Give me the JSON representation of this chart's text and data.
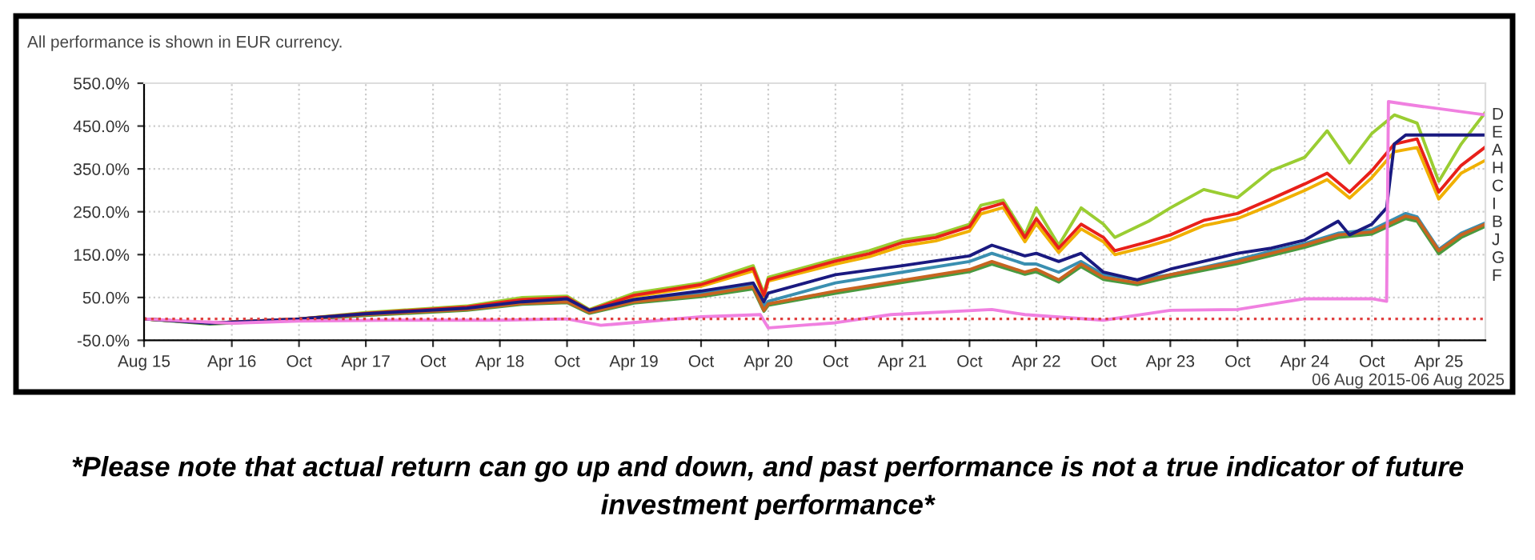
{
  "chart_data": {
    "type": "line",
    "title": "All performance is shown in EUR currency.",
    "annotations": [
      "06 Aug 2015-06 Aug 2025",
      "*Please note that actual return can go up and down, and past performance is not a true indicator of future investment performance*",
      "D",
      "E",
      "A",
      "H",
      "C",
      "I",
      "B",
      "J",
      "G",
      "F"
    ],
    "series": [
      {
        "color": "#9acd32",
        "x": [
          "2015-08-06",
          "2016-02",
          "2016-10",
          "2017-04",
          "2018-01",
          "2018-06",
          "2018-10",
          "2018-12",
          "2019-04",
          "2019-10",
          "2020-02-20",
          "2020-03-20",
          "2020-04",
          "2020-10",
          "2021-01",
          "2021-04",
          "2021-07",
          "2021-10",
          "2021-11",
          "2022-01",
          "2022-03",
          "2022-04",
          "2022-06",
          "2022-08",
          "2022-10",
          "2022-11",
          "2023-02",
          "2023-04",
          "2023-07",
          "2023-10",
          "2024-01",
          "2024-04",
          "2024-06",
          "2024-08",
          "2024-10",
          "2024-12",
          "2025-02",
          "2025-04",
          "2025-06",
          "2025-08-06"
        ],
        "values": [
          0,
          -10,
          0,
          15,
          30,
          50,
          53,
          22,
          60,
          84,
          124,
          60,
          97,
          140,
          159,
          184,
          196,
          221,
          265,
          277,
          196,
          259,
          172,
          259,
          221,
          190,
          228,
          259,
          302,
          283,
          346,
          377,
          439,
          364,
          433,
          476,
          457,
          321,
          408,
          482
        ]
      },
      {
        "color": "#f0b000",
        "x": [
          "2018-12",
          "2019-04",
          "2019-10",
          "2020-02-20",
          "2020-03-20",
          "2020-04",
          "2020-10",
          "2021-01",
          "2021-04",
          "2021-07",
          "2021-10",
          "2021-11",
          "2022-01",
          "2022-03",
          "2022-04",
          "2022-06",
          "2022-08",
          "2022-10",
          "2022-11",
          "2023-02",
          "2023-04",
          "2023-07",
          "2023-10",
          "2024-01",
          "2024-04",
          "2024-06",
          "2024-08",
          "2024-10",
          "2024-12",
          "2025-02",
          "2025-04",
          "2025-06",
          "2025-08-06"
        ],
        "values": [
          18,
          52,
          76,
          112,
          50,
          88,
          128,
          145,
          170,
          182,
          205,
          245,
          260,
          180,
          222,
          155,
          210,
          180,
          150,
          170,
          185,
          218,
          234,
          266,
          300,
          325,
          282,
          330,
          390,
          400,
          280,
          340,
          370
        ]
      },
      {
        "color": "#e8201a",
        "x": [
          "2015-08-06",
          "2016-02",
          "2016-10",
          "2017-04",
          "2018-01",
          "2018-06",
          "2018-10",
          "2018-12",
          "2019-04",
          "2019-10",
          "2020-02-20",
          "2020-03-20",
          "2020-04",
          "2020-10",
          "2021-01",
          "2021-04",
          "2021-07",
          "2021-10",
          "2021-11",
          "2022-01",
          "2022-03",
          "2022-04",
          "2022-06",
          "2022-08",
          "2022-10",
          "2022-11",
          "2023-02",
          "2023-04",
          "2023-07",
          "2023-10",
          "2024-01",
          "2024-04",
          "2024-06",
          "2024-08",
          "2024-10",
          "2024-12",
          "2025-02",
          "2025-04",
          "2025-06",
          "2025-08-06"
        ],
        "values": [
          0,
          -10,
          0,
          13,
          28,
          45,
          50,
          20,
          55,
          80,
          118,
          55,
          92,
          135,
          152,
          178,
          190,
          215,
          255,
          270,
          190,
          234,
          165,
          221,
          190,
          159,
          180,
          196,
          230,
          246,
          280,
          315,
          340,
          296,
          346,
          408,
          420,
          296,
          358,
          401
        ]
      },
      {
        "color": "#3a8fb0",
        "x": [
          "2019-04",
          "2019-10",
          "2020-02-20",
          "2020-03-20",
          "2020-04",
          "2020-10",
          "2021-04",
          "2021-10",
          "2021-12",
          "2022-03",
          "2022-04",
          "2022-06",
          "2022-08",
          "2022-10",
          "2023-01",
          "2023-04",
          "2023-10",
          "2024-01",
          "2024-04",
          "2024-07",
          "2024-10",
          "2025-01",
          "2025-02",
          "2025-04",
          "2025-06",
          "2025-08-06"
        ],
        "values": [
          43,
          60,
          78,
          30,
          41,
          84,
          109,
          134,
          153,
          128,
          128,
          109,
          134,
          103,
          91,
          103,
          138,
          158,
          176,
          200,
          208,
          246,
          238,
          162,
          200,
          224
        ]
      },
      {
        "color": "#4a9a40",
        "x": [
          "2015-08-06",
          "2016-02",
          "2016-10",
          "2017-04",
          "2018-01",
          "2018-06",
          "2018-10",
          "2018-12",
          "2019-04",
          "2019-10",
          "2020-02-20",
          "2020-03-20",
          "2020-04",
          "2020-10",
          "2021-04",
          "2021-10",
          "2021-12",
          "2022-03",
          "2022-04",
          "2022-06",
          "2022-08",
          "2022-10",
          "2023-01",
          "2023-04",
          "2023-10",
          "2024-01",
          "2024-04",
          "2024-07",
          "2024-10",
          "2025-01",
          "2025-02",
          "2025-04",
          "2025-06",
          "2025-08-06"
        ],
        "values": [
          0,
          -12,
          -2,
          8,
          20,
          34,
          38,
          13,
          37,
          52,
          70,
          18,
          32,
          60,
          85,
          110,
          128,
          104,
          110,
          86,
          122,
          92,
          80,
          98,
          129,
          148,
          167,
          190,
          198,
          234,
          228,
          152,
          190,
          216
        ]
      },
      {
        "color": "#c86420",
        "x": [
          "2015-08-06",
          "2016-02",
          "2016-10",
          "2017-04",
          "2018-01",
          "2018-06",
          "2018-10",
          "2018-12",
          "2019-04",
          "2019-10",
          "2020-02-20",
          "2020-03-20",
          "2020-04",
          "2020-10",
          "2021-04",
          "2021-10",
          "2021-12",
          "2022-03",
          "2022-04",
          "2022-06",
          "2022-08",
          "2022-10",
          "2023-01",
          "2023-04",
          "2023-10",
          "2024-01",
          "2024-04",
          "2024-07",
          "2024-10",
          "2025-01",
          "2025-02",
          "2025-04",
          "2025-06",
          "2025-08-06"
        ],
        "values": [
          0,
          -10,
          0,
          10,
          22,
          36,
          40,
          15,
          40,
          55,
          75,
          20,
          35,
          65,
          90,
          115,
          134,
          109,
          116,
          91,
          128,
          97,
          84,
          103,
          134,
          153,
          172,
          196,
          203,
          240,
          234,
          159,
          196,
          221
        ]
      },
      {
        "color": "#1a1a80",
        "x": [
          "2015-08-06",
          "2016-02",
          "2016-10",
          "2017-04",
          "2018-01",
          "2018-06",
          "2018-10",
          "2018-12",
          "2019-04",
          "2019-10",
          "2020-02-20",
          "2020-03-20",
          "2020-04",
          "2020-10",
          "2021-04",
          "2021-10",
          "2021-12",
          "2022-03",
          "2022-04",
          "2022-06",
          "2022-08",
          "2022-10",
          "2023-01",
          "2023-04",
          "2023-10",
          "2024-01",
          "2024-04",
          "2024-07",
          "2024-08",
          "2024-10",
          "2024-11-10",
          "2024-12",
          "2025-01",
          "2025-08-06"
        ],
        "values": [
          0,
          -10,
          0,
          12,
          25,
          40,
          47,
          20,
          45,
          65,
          84,
          40,
          60,
          103,
          124,
          147,
          172,
          147,
          153,
          134,
          153,
          109,
          91,
          116,
          153,
          165,
          184,
          228,
          196,
          221,
          259,
          408,
          429,
          429
        ]
      },
      {
        "color": "#f080e0",
        "x": [
          "2015-08-06",
          "2016-04",
          "2016-10",
          "2017-06",
          "2018-04",
          "2018-10",
          "2019-01",
          "2019-10",
          "2020-03-10",
          "2020-04",
          "2020-10",
          "2021-03",
          "2021-12",
          "2022-03",
          "2022-10",
          "2023-04",
          "2023-10",
          "2024-04",
          "2024-10",
          "2024-11-10",
          "2024-11-15",
          "2025-01",
          "2025-08-06"
        ],
        "values": [
          0,
          -10,
          -5,
          -3,
          -3,
          0,
          -15,
          5,
          10,
          -21,
          -9,
          10,
          22,
          10,
          -3,
          20,
          22,
          47,
          47,
          41,
          507,
          501,
          476
        ]
      }
    ],
    "xlim": [
      "2015-08-06",
      "2025-08-06"
    ],
    "xticks": [
      {
        "value": "2015-08-06",
        "label": "Aug 15"
      },
      {
        "value": "2016-04-01",
        "label": "Apr 16"
      },
      {
        "value": "2016-10-01",
        "label": "Oct"
      },
      {
        "value": "2017-04-01",
        "label": "Apr 17"
      },
      {
        "value": "2017-10-01",
        "label": "Oct"
      },
      {
        "value": "2018-04-01",
        "label": "Apr 18"
      },
      {
        "value": "2018-10-01",
        "label": "Oct"
      },
      {
        "value": "2019-04-01",
        "label": "Apr 19"
      },
      {
        "value": "2019-10-01",
        "label": "Oct"
      },
      {
        "value": "2020-04-01",
        "label": "Apr 20"
      },
      {
        "value": "2020-10-01",
        "label": "Oct"
      },
      {
        "value": "2021-04-01",
        "label": "Apr 21"
      },
      {
        "value": "2021-10-01",
        "label": "Oct"
      },
      {
        "value": "2022-04-01",
        "label": "Apr 22"
      },
      {
        "value": "2022-10-01",
        "label": "Oct"
      },
      {
        "value": "2023-04-01",
        "label": "Apr 23"
      },
      {
        "value": "2023-10-01",
        "label": "Oct"
      },
      {
        "value": "2024-04-01",
        "label": "Apr 24"
      },
      {
        "value": "2024-10-01",
        "label": "Oct"
      },
      {
        "value": "2025-04-01",
        "label": "Apr 25"
      }
    ],
    "ylim": [
      -50,
      550
    ],
    "yticks": [
      {
        "value": -50,
        "label": "-50.0%"
      },
      {
        "value": 50,
        "label": "50.0%"
      },
      {
        "value": 150,
        "label": "150.0%"
      },
      {
        "value": 250,
        "label": "250.0%"
      },
      {
        "value": 350,
        "label": "350.0%"
      },
      {
        "value": 450,
        "label": "450.0%"
      },
      {
        "value": 550,
        "label": "550.0%"
      }
    ],
    "ref_lines": [
      {
        "axis": "y",
        "value": 0,
        "color": "#e04040",
        "line_style": "dotted"
      }
    ],
    "grid": true,
    "line_style": "solid",
    "marker": "none"
  }
}
